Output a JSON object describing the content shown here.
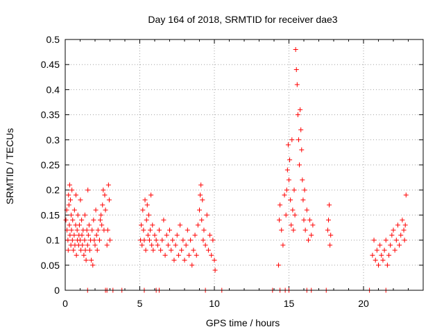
{
  "chart_data": {
    "type": "scatter",
    "title": "Day 164 of 2018, SRMTID for receiver dae3",
    "xlabel": "GPS time / hours",
    "ylabel": "SRMTID / TECUs",
    "xlim": [
      0,
      24
    ],
    "ylim": [
      0,
      0.5
    ],
    "grid": true,
    "marker": "+",
    "color": "#ff0000",
    "xticks": [
      0,
      5,
      10,
      15,
      20
    ],
    "yticks": [
      0,
      0.05,
      0.1,
      0.15,
      0.2,
      0.25,
      0.3,
      0.35,
      0.4,
      0.45,
      0.5
    ],
    "xtick_labels": [
      "0",
      "5",
      "10",
      "15",
      "20"
    ],
    "ytick_labels": [
      "0",
      "0.05",
      "0.1",
      "0.15",
      "0.2",
      "0.25",
      "0.3",
      "0.35",
      "0.4",
      "0.45",
      "0.5"
    ],
    "series": [
      {
        "name": "SRMTID",
        "points": [
          [
            0.05,
            0.14
          ],
          [
            0.1,
            0.16
          ],
          [
            0.12,
            0.12
          ],
          [
            0.18,
            0.1
          ],
          [
            0.2,
            0.08
          ],
          [
            0.22,
            0.19
          ],
          [
            0.25,
            0.17
          ],
          [
            0.28,
            0.13
          ],
          [
            0.3,
            0.21
          ],
          [
            0.32,
            0.11
          ],
          [
            0.35,
            0.18
          ],
          [
            0.38,
            0.09
          ],
          [
            0.4,
            0.15
          ],
          [
            0.42,
            0.12
          ],
          [
            0.45,
            0.2
          ],
          [
            0.48,
            0.1
          ],
          [
            0.5,
            0.14
          ],
          [
            0.55,
            0.08
          ],
          [
            0.6,
            0.11
          ],
          [
            0.62,
            0.16
          ],
          [
            0.65,
            0.09
          ],
          [
            0.7,
            0.13
          ],
          [
            0.72,
            0.19
          ],
          [
            0.75,
            0.07
          ],
          [
            0.8,
            0.12
          ],
          [
            0.82,
            0.1
          ],
          [
            0.85,
            0.15
          ],
          [
            0.9,
            0.09
          ],
          [
            0.92,
            0.11
          ],
          [
            0.95,
            0.13
          ],
          [
            1.0,
            0.1
          ],
          [
            1.02,
            0.18
          ],
          [
            1.05,
            0.08
          ],
          [
            1.1,
            0.14
          ],
          [
            1.12,
            0.11
          ],
          [
            1.15,
            0.09
          ],
          [
            1.2,
            0.12
          ],
          [
            1.25,
            0.07
          ],
          [
            1.3,
            0.1
          ],
          [
            1.32,
            0.15
          ],
          [
            1.35,
            0.08
          ],
          [
            1.4,
            0.06
          ],
          [
            1.45,
            0.12
          ],
          [
            1.5,
            0.09
          ],
          [
            1.52,
            0.2
          ],
          [
            1.55,
            0.11
          ],
          [
            1.6,
            0.13
          ],
          [
            1.65,
            0.08
          ],
          [
            1.7,
            0.1
          ],
          [
            1.75,
            0.06
          ],
          [
            1.8,
            0.12
          ],
          [
            1.85,
            0.05
          ],
          [
            1.9,
            0.14
          ],
          [
            1.95,
            0.1
          ],
          [
            2.0,
            0.09
          ],
          [
            2.05,
            0.16
          ],
          [
            2.1,
            0.11
          ],
          [
            2.15,
            0.08
          ],
          [
            2.2,
            0.12
          ],
          [
            2.3,
            0.1
          ],
          [
            2.35,
            0.14
          ],
          [
            2.4,
            0.15
          ],
          [
            2.45,
            0.13
          ],
          [
            2.5,
            0.17
          ],
          [
            2.55,
            0.2
          ],
          [
            2.6,
            0.12
          ],
          [
            2.65,
            0.19
          ],
          [
            2.7,
            0.16
          ],
          [
            2.8,
            0.09
          ],
          [
            2.85,
            0.12
          ],
          [
            2.9,
            0.21
          ],
          [
            2.95,
            0.18
          ],
          [
            3.0,
            0.1
          ],
          [
            5.05,
            0.1
          ],
          [
            5.1,
            0.13
          ],
          [
            5.15,
            0.09
          ],
          [
            5.2,
            0.16
          ],
          [
            5.25,
            0.12
          ],
          [
            5.3,
            0.1
          ],
          [
            5.35,
            0.18
          ],
          [
            5.4,
            0.08
          ],
          [
            5.45,
            0.14
          ],
          [
            5.5,
            0.17
          ],
          [
            5.55,
            0.11
          ],
          [
            5.6,
            0.15
          ],
          [
            5.65,
            0.1
          ],
          [
            5.7,
            0.12
          ],
          [
            5.75,
            0.19
          ],
          [
            5.8,
            0.09
          ],
          [
            5.85,
            0.13
          ],
          [
            5.9,
            0.08
          ],
          [
            6.0,
            0.11
          ],
          [
            6.1,
            0.1
          ],
          [
            6.2,
            0.09
          ],
          [
            6.3,
            0.12
          ],
          [
            6.4,
            0.08
          ],
          [
            6.5,
            0.1
          ],
          [
            6.6,
            0.14
          ],
          [
            6.7,
            0.07
          ],
          [
            6.8,
            0.11
          ],
          [
            6.9,
            0.09
          ],
          [
            7.0,
            0.12
          ],
          [
            7.1,
            0.08
          ],
          [
            7.2,
            0.1
          ],
          [
            7.3,
            0.06
          ],
          [
            7.4,
            0.09
          ],
          [
            7.5,
            0.11
          ],
          [
            7.6,
            0.07
          ],
          [
            7.7,
            0.13
          ],
          [
            7.8,
            0.08
          ],
          [
            7.9,
            0.1
          ],
          [
            8.0,
            0.06
          ],
          [
            8.1,
            0.09
          ],
          [
            8.2,
            0.12
          ],
          [
            8.3,
            0.07
          ],
          [
            8.4,
            0.1
          ],
          [
            8.5,
            0.05
          ],
          [
            8.6,
            0.08
          ],
          [
            8.7,
            0.11
          ],
          [
            8.8,
            0.07
          ],
          [
            8.9,
            0.13
          ],
          [
            9.0,
            0.16
          ],
          [
            9.05,
            0.19
          ],
          [
            9.1,
            0.21
          ],
          [
            9.15,
            0.14
          ],
          [
            9.2,
            0.18
          ],
          [
            9.25,
            0.1
          ],
          [
            9.3,
            0.12
          ],
          [
            9.4,
            0.09
          ],
          [
            9.5,
            0.15
          ],
          [
            9.6,
            0.08
          ],
          [
            9.7,
            0.11
          ],
          [
            9.8,
            0.07
          ],
          [
            9.9,
            0.1
          ],
          [
            10.0,
            0.06
          ],
          [
            10.05,
            0.04
          ],
          [
            14.3,
            0.05
          ],
          [
            14.35,
            0.14
          ],
          [
            14.4,
            0.17
          ],
          [
            14.5,
            0.12
          ],
          [
            14.6,
            0.09
          ],
          [
            14.7,
            0.19
          ],
          [
            14.8,
            0.15
          ],
          [
            14.85,
            0.2
          ],
          [
            14.9,
            0.24
          ],
          [
            14.95,
            0.29
          ],
          [
            15.0,
            0.22
          ],
          [
            15.05,
            0.26
          ],
          [
            15.1,
            0.18
          ],
          [
            15.15,
            0.13
          ],
          [
            15.2,
            0.3
          ],
          [
            15.25,
            0.16
          ],
          [
            15.3,
            0.12
          ],
          [
            15.35,
            0.2
          ],
          [
            15.4,
            0.15
          ],
          [
            15.45,
            0.48
          ],
          [
            15.5,
            0.44
          ],
          [
            15.55,
            0.41
          ],
          [
            15.6,
            0.35
          ],
          [
            15.65,
            0.3
          ],
          [
            15.7,
            0.25
          ],
          [
            15.75,
            0.36
          ],
          [
            15.8,
            0.32
          ],
          [
            15.85,
            0.28
          ],
          [
            15.9,
            0.22
          ],
          [
            15.95,
            0.18
          ],
          [
            16.0,
            0.14
          ],
          [
            16.05,
            0.2
          ],
          [
            16.1,
            0.12
          ],
          [
            16.2,
            0.16
          ],
          [
            16.3,
            0.1
          ],
          [
            16.4,
            0.14
          ],
          [
            16.5,
            0.11
          ],
          [
            16.6,
            0.13
          ],
          [
            17.6,
            0.12
          ],
          [
            17.65,
            0.14
          ],
          [
            17.7,
            0.17
          ],
          [
            17.75,
            0.09
          ],
          [
            17.8,
            0.11
          ],
          [
            20.6,
            0.07
          ],
          [
            20.7,
            0.1
          ],
          [
            20.8,
            0.06
          ],
          [
            20.9,
            0.08
          ],
          [
            21.0,
            0.05
          ],
          [
            21.1,
            0.09
          ],
          [
            21.2,
            0.07
          ],
          [
            21.3,
            0.06
          ],
          [
            21.4,
            0.08
          ],
          [
            21.5,
            0.1
          ],
          [
            21.6,
            0.05
          ],
          [
            21.7,
            0.07
          ],
          [
            21.8,
            0.09
          ],
          [
            21.9,
            0.11
          ],
          [
            22.0,
            0.12
          ],
          [
            22.1,
            0.08
          ],
          [
            22.2,
            0.1
          ],
          [
            22.3,
            0.13
          ],
          [
            22.4,
            0.09
          ],
          [
            22.5,
            0.11
          ],
          [
            22.6,
            0.14
          ],
          [
            22.7,
            0.12
          ],
          [
            22.75,
            0.1
          ],
          [
            22.8,
            0.13
          ],
          [
            22.85,
            0.19
          ]
        ]
      }
    ],
    "zero_markers_x": [
      1.5,
      2.7,
      2.8,
      3.2,
      3.8,
      5.3,
      6.1,
      6.3,
      9.4,
      10.5,
      13.9,
      14.4,
      14.75,
      15.0,
      16.2,
      16.5,
      17.5,
      20.4,
      21.5
    ]
  }
}
